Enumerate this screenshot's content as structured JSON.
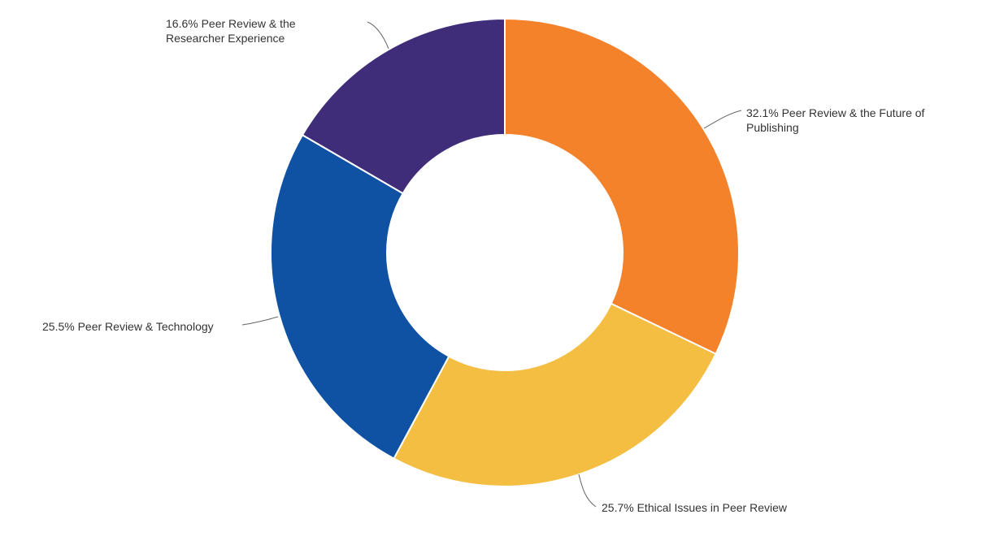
{
  "chart_data": {
    "type": "pie",
    "variant": "donut",
    "title": "",
    "slices": [
      {
        "label": "Peer Review & the Future of Publishing",
        "value": 32.1,
        "display": "32.1%",
        "color": "#F4822B"
      },
      {
        "label": "Ethical Issues in Peer Review",
        "value": 25.7,
        "display": "25.7%",
        "color": "#F4BE42"
      },
      {
        "label": "Peer Review & Technology",
        "value": 25.5,
        "display": "25.5%",
        "color": "#0F52A3"
      },
      {
        "label": "Peer Review & the Researcher Experience",
        "value": 16.6,
        "display": "16.6%",
        "color": "#3F2D79"
      }
    ]
  },
  "labels": {
    "s0": {
      "line1": "32.1% Peer Review & the Future of",
      "line2": "Publishing"
    },
    "s1": {
      "line1": "25.7% Ethical Issues in Peer Review"
    },
    "s2": {
      "line1": "25.5% Peer Review & Technology"
    },
    "s3": {
      "line1": "16.6% Peer Review & the",
      "line2": "Researcher Experience"
    }
  }
}
